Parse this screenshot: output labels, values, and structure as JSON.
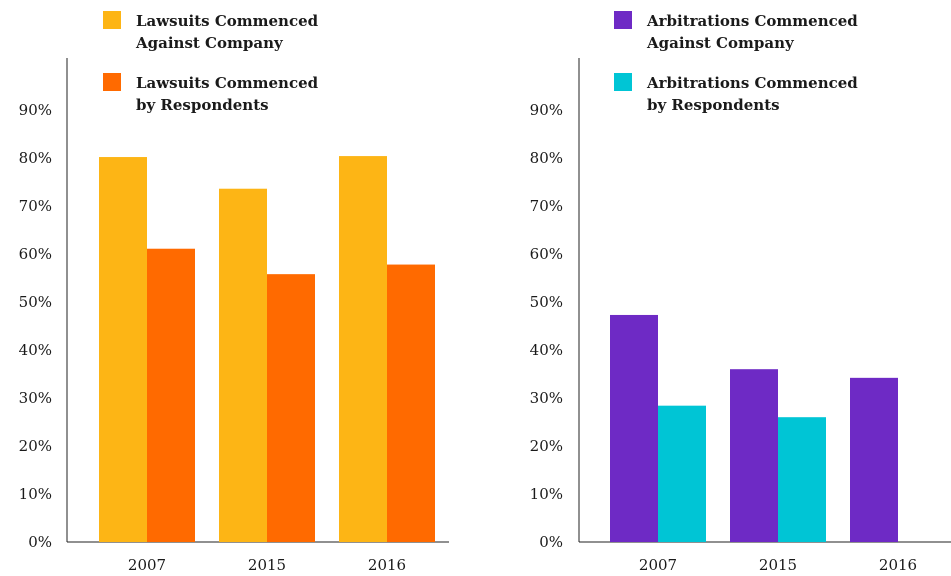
{
  "chart_data": [
    {
      "type": "bar",
      "categories": [
        "2007",
        "2015",
        "2016"
      ],
      "series": [
        {
          "name": [
            "Lawsuits Commenced",
            "Against Company"
          ],
          "color": "#FDB515",
          "values": [
            80.2,
            73.6,
            80.4
          ]
        },
        {
          "name": [
            "Lawsuits Commenced",
            "by Respondents"
          ],
          "color": "#FF6A00",
          "values": [
            61.1,
            55.8,
            57.8
          ]
        }
      ],
      "y_ticks": [
        "0%",
        "10%",
        "20%",
        "30%",
        "40%",
        "50%",
        "60%",
        "70%",
        "80%",
        "90%"
      ],
      "ylim": [
        0,
        100
      ],
      "grid": false,
      "legend": "top"
    },
    {
      "type": "bar",
      "categories": [
        "2007",
        "2015",
        "2016"
      ],
      "series": [
        {
          "name": [
            "Arbitrations Commenced",
            "Against Company"
          ],
          "color": "#6E2AC5",
          "values": [
            47.3,
            36.0,
            34.2
          ]
        },
        {
          "name": [
            "Arbitrations Commenced",
            "by Respondents"
          ],
          "color": "#00C5D5",
          "values": [
            28.4,
            26.0,
            null
          ]
        }
      ],
      "y_ticks": [
        "0%",
        "10%",
        "20%",
        "30%",
        "40%",
        "50%",
        "60%",
        "70%",
        "80%",
        "90%"
      ],
      "ylim": [
        0,
        100
      ],
      "grid": false,
      "legend": "top"
    }
  ]
}
